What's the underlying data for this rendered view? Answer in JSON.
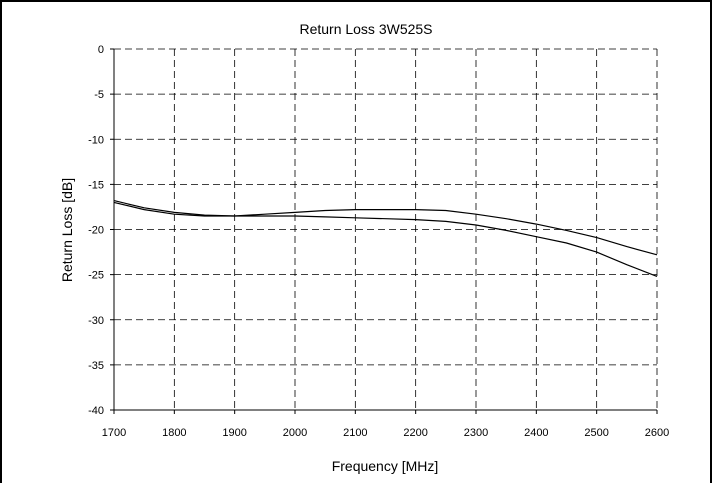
{
  "chart_data": {
    "type": "line",
    "title": "Return Loss 3W525S",
    "xlabel": "Frequency [MHz]",
    "ylabel": "Return Loss [dB]",
    "xlim": [
      1700,
      2600
    ],
    "ylim": [
      -40,
      0
    ],
    "xticks": [
      1700,
      1800,
      1900,
      2000,
      2100,
      2200,
      2300,
      2400,
      2500,
      2600
    ],
    "yticks": [
      0,
      -5,
      -10,
      -15,
      -20,
      -25,
      -30,
      -35,
      -40
    ],
    "grid": true,
    "line_color": "#000000",
    "series": [
      {
        "x": [
          1700,
          1750,
          1800,
          1850,
          1900,
          1950,
          2000,
          2050,
          2100,
          2150,
          2200,
          2250,
          2300,
          2350,
          2400,
          2450,
          2500,
          2550,
          2600
        ],
        "values": [
          -16.8,
          -17.6,
          -18.1,
          -18.4,
          -18.5,
          -18.3,
          -18.1,
          -17.9,
          -17.8,
          -17.8,
          -17.8,
          -17.9,
          -18.3,
          -18.8,
          -19.4,
          -20.1,
          -20.9,
          -21.9,
          -22.8
        ]
      },
      {
        "x": [
          1700,
          1750,
          1800,
          1850,
          1900,
          1950,
          2000,
          2050,
          2100,
          2150,
          2200,
          2250,
          2300,
          2350,
          2400,
          2450,
          2500,
          2550,
          2600
        ],
        "values": [
          -17.0,
          -17.8,
          -18.3,
          -18.5,
          -18.5,
          -18.5,
          -18.5,
          -18.6,
          -18.7,
          -18.8,
          -18.9,
          -19.1,
          -19.5,
          -20.1,
          -20.8,
          -21.5,
          -22.5,
          -23.9,
          -25.2
        ]
      }
    ]
  }
}
